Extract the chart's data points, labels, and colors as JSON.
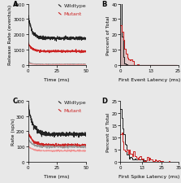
{
  "panel_labels": [
    "A",
    "B",
    "C",
    "D"
  ],
  "panel_label_fontsize": 6,
  "colors": {
    "wildtype": "#222222",
    "mutant": "#cc2222",
    "wildtype_light": "#999999",
    "mutant_light": "#f09090"
  },
  "panel_A": {
    "ylabel": "Release Rate (events/s)",
    "xlabel": "Time (ms)",
    "xlim": [
      0,
      50
    ],
    "ylim": [
      0,
      4000
    ],
    "yticks": [
      0,
      1000,
      2000,
      3000,
      4000
    ],
    "xticks": [
      0,
      25,
      50
    ]
  },
  "panel_B": {
    "ylabel": "Percent of Total",
    "xlabel": "First Event Latency (ms)",
    "xlim": [
      0,
      25
    ],
    "ylim": [
      0,
      40
    ],
    "yticks": [
      0,
      10,
      20,
      30,
      40
    ],
    "xticks": [
      0,
      13,
      25
    ]
  },
  "panel_C": {
    "ylabel": "Rate (sp/s)",
    "xlabel": "Time (ms)",
    "xlim": [
      0,
      50
    ],
    "ylim": [
      0,
      400
    ],
    "yticks": [
      0,
      100,
      200,
      300,
      400
    ],
    "xticks": [
      0,
      25,
      50
    ]
  },
  "panel_D": {
    "ylabel": "Percent of Total",
    "xlabel": "First Spike Latency (ms)",
    "xlim": [
      0,
      35
    ],
    "ylim": [
      0,
      25
    ],
    "yticks": [
      0,
      5,
      10,
      15,
      20,
      25
    ],
    "xticks": [
      0,
      13,
      25,
      35
    ]
  },
  "axis_fontsize": 4.5,
  "tick_fontsize": 4,
  "legend_fontsize": 4.5,
  "bg_color": "#e8e8e8"
}
